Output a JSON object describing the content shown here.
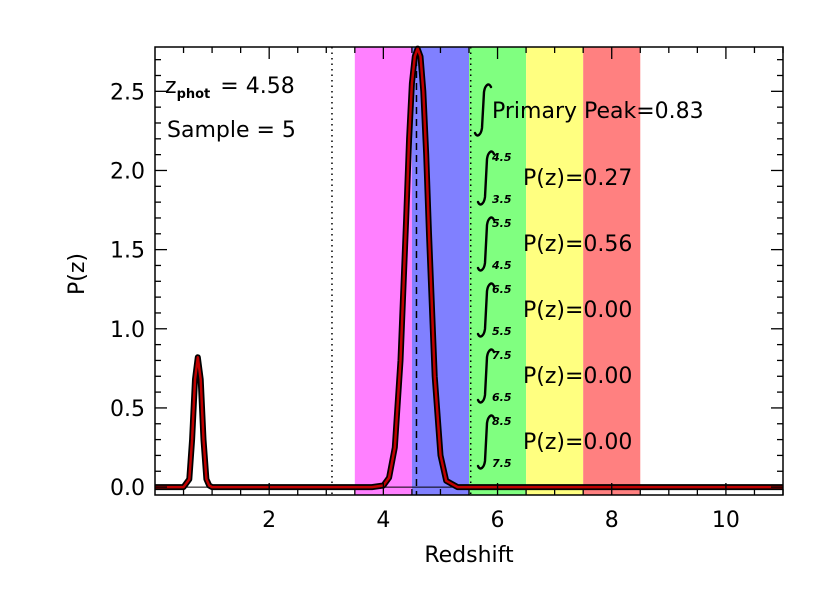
{
  "chart_data": {
    "type": "line",
    "xlabel": "Redshift",
    "ylabel": "P(z)",
    "xlim": [
      0.0,
      11.0
    ],
    "ylim": [
      -0.05,
      2.78
    ],
    "xticks": [
      2,
      4,
      6,
      8,
      10
    ],
    "yticks": [
      0.0,
      0.5,
      1.0,
      1.5,
      2.0,
      2.5
    ],
    "ytick_labels": [
      "0.0",
      "0.5",
      "1.0",
      "1.5",
      "2.0",
      "2.5"
    ],
    "grid": false,
    "bands": [
      {
        "x0": 3.5,
        "x1": 4.5,
        "color": "#ff80ff"
      },
      {
        "x0": 4.5,
        "x1": 5.5,
        "color": "#8080ff"
      },
      {
        "x0": 5.5,
        "x1": 6.5,
        "color": "#80ff80"
      },
      {
        "x0": 6.5,
        "x1": 7.5,
        "color": "#ffff80"
      },
      {
        "x0": 7.5,
        "x1": 8.5,
        "color": "#ff8080"
      }
    ],
    "series": [
      {
        "line_color": "#000000",
        "fill_color": "#c00000",
        "x": [
          0.0,
          0.5,
          0.6,
          0.65,
          0.7,
          0.75,
          0.8,
          0.85,
          0.9,
          0.95,
          1.0,
          1.1,
          1.5,
          2.0,
          3.0,
          3.8,
          4.0,
          4.1,
          4.2,
          4.3,
          4.4,
          4.45,
          4.5,
          4.55,
          4.6,
          4.65,
          4.7,
          4.75,
          4.8,
          4.9,
          5.0,
          5.1,
          5.3,
          6.0,
          8.0,
          11.0
        ],
        "values": [
          0.0,
          0.0,
          0.05,
          0.3,
          0.68,
          0.82,
          0.68,
          0.3,
          0.05,
          0.01,
          0.0,
          0.0,
          0.0,
          0.0,
          0.0,
          0.0,
          0.01,
          0.06,
          0.25,
          0.8,
          1.7,
          2.2,
          2.55,
          2.72,
          2.77,
          2.72,
          2.5,
          2.1,
          1.6,
          0.7,
          0.2,
          0.04,
          0.0,
          0.0,
          0.0,
          0.0
        ]
      }
    ],
    "vlines": [
      {
        "x": 3.1,
        "style": "dotted"
      },
      {
        "x": 4.58,
        "style": "dashed"
      },
      {
        "x": 5.53,
        "style": "dotted"
      }
    ],
    "annotations": {
      "zphot_prefix": "z",
      "zphot_sub": "phot",
      "zphot_value": "= 4.58",
      "sample_text": "Sample = 5",
      "sample_color": "#8080ff",
      "primary_text": "Primary Peak=0.83",
      "integrals": [
        {
          "upper": "4.5",
          "lower": "3.5",
          "text": "P(z)=0.27"
        },
        {
          "upper": "5.5",
          "lower": "4.5",
          "text": "P(z)=0.56"
        },
        {
          "upper": "6.5",
          "lower": "5.5",
          "text": "P(z)=0.00"
        },
        {
          "upper": "7.5",
          "lower": "6.5",
          "text": "P(z)=0.00"
        },
        {
          "upper": "8.5",
          "lower": "7.5",
          "text": "P(z)=0.00"
        }
      ]
    }
  }
}
